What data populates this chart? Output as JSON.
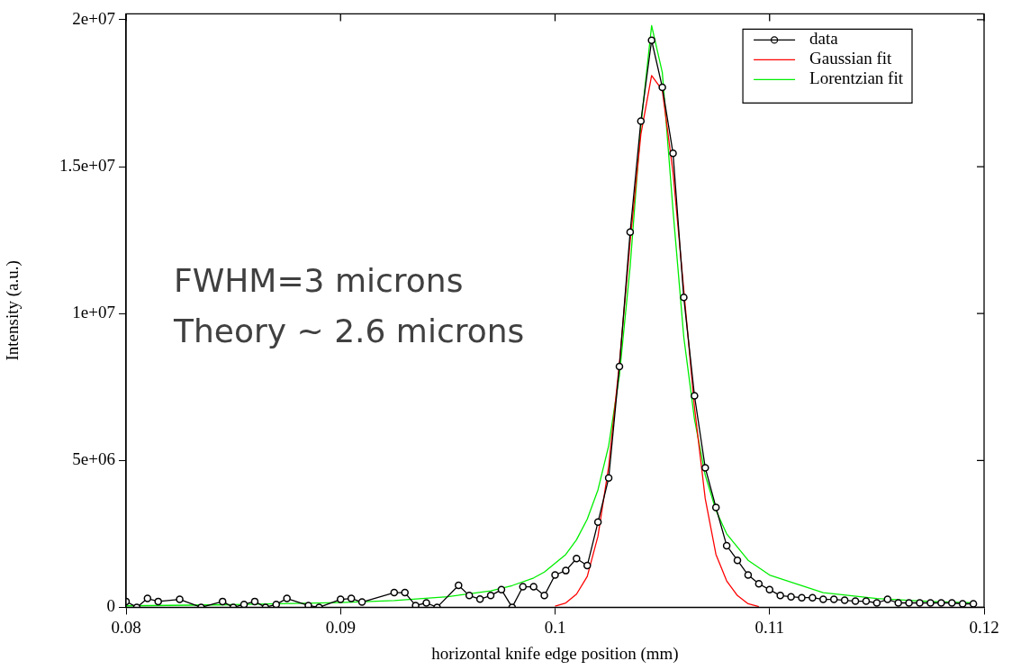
{
  "chart_data": {
    "type": "line",
    "xlabel": "horizontal knife edge position (mm)",
    "ylabel": "Intensity (a.u.)",
    "xlim": [
      0.08,
      0.12
    ],
    "xticks": [
      0.08,
      0.09,
      0.1,
      0.11,
      0.12
    ],
    "ylim": [
      0,
      20200000
    ],
    "yticks": [
      0,
      {
        "value": 5000000,
        "label": "5e+06"
      },
      {
        "value": 10000000,
        "label": "1e+07"
      },
      {
        "value": 15000000,
        "label": "1.5e+07"
      },
      {
        "value": 20000000,
        "label": "2e+07"
      }
    ],
    "grid": false,
    "legend": "top right",
    "annotations": [
      "FWHM=3 microns",
      "Theory ~ 2.6 microns"
    ],
    "series": [
      {
        "name": "data",
        "color": "#000000",
        "marker": "circle",
        "x": [
          0.08,
          0.0805,
          0.081,
          0.0815,
          0.0825,
          0.0835,
          0.0845,
          0.085,
          0.0855,
          0.086,
          0.0865,
          0.087,
          0.0875,
          0.0885,
          0.089,
          0.09,
          0.0905,
          0.091,
          0.0925,
          0.093,
          0.0935,
          0.094,
          0.0945,
          0.0955,
          0.096,
          0.0965,
          0.097,
          0.0975,
          0.098,
          0.0985,
          0.099,
          0.0995,
          0.1,
          0.1005,
          0.101,
          0.1015,
          0.102,
          0.1025,
          0.103,
          0.1035,
          0.104,
          0.1045,
          0.105,
          0.1055,
          0.106,
          0.1065,
          0.107,
          0.1075,
          0.108,
          0.1085,
          0.109,
          0.1095,
          0.11,
          0.1105,
          0.111,
          0.1115,
          0.112,
          0.1125,
          0.113,
          0.1135,
          0.114,
          0.1145,
          0.115,
          0.1155,
          0.116,
          0.1165,
          0.117,
          0.1175,
          0.118,
          0.1185,
          0.119,
          0.1195
        ],
        "values": [
          200000,
          0,
          300000,
          200000,
          270000,
          0,
          200000,
          0,
          100000,
          200000,
          0,
          100000,
          300000,
          60000,
          0,
          270000,
          300000,
          180000,
          500000,
          500000,
          60000,
          150000,
          0,
          750000,
          400000,
          280000,
          400000,
          600000,
          0,
          700000,
          700000,
          400000,
          1100000,
          1250000,
          1660000,
          1420000,
          2900000,
          4400000,
          8200000,
          12770000,
          16550000,
          19300000,
          17700000,
          15450000,
          10550000,
          7200000,
          4750000,
          3400000,
          2100000,
          1600000,
          1100000,
          800000,
          600000,
          400000,
          360000,
          330000,
          330000,
          270000,
          270000,
          240000,
          210000,
          210000,
          150000,
          270000,
          150000,
          150000,
          150000,
          150000,
          150000,
          150000,
          120000,
          120000
        ]
      },
      {
        "name": "Gaussian fit",
        "color": "#ff0000",
        "marker": "none",
        "x": [
          0.1,
          0.1005,
          0.101,
          0.1015,
          0.102,
          0.1025,
          0.103,
          0.1035,
          0.104,
          0.1045,
          0.105,
          0.1055,
          0.106,
          0.1065,
          0.107,
          0.1075,
          0.108,
          0.1085,
          0.109,
          0.1095
        ],
        "values": [
          40000,
          150000,
          450000,
          1050000,
          2420000,
          4800000,
          8300000,
          12450000,
          16100000,
          18100000,
          17600000,
          14800000,
          10800000,
          6800000,
          3700000,
          1800000,
          900000,
          400000,
          120000,
          20000
        ]
      },
      {
        "name": "Lorentzian fit",
        "color": "#00ee00",
        "marker": "none",
        "x": [
          0.08,
          0.085,
          0.09,
          0.0925,
          0.095,
          0.097,
          0.098,
          0.099,
          0.0995,
          0.1,
          0.1005,
          0.101,
          0.1015,
          0.102,
          0.1025,
          0.103,
          0.1035,
          0.104,
          0.1045,
          0.105,
          0.1055,
          0.106,
          0.1065,
          0.107,
          0.1075,
          0.108,
          0.109,
          0.11,
          0.1125,
          0.115,
          0.1175,
          0.1195
        ],
        "values": [
          50000,
          90000,
          160000,
          230000,
          360000,
          560000,
          740000,
          1000000,
          1200000,
          1500000,
          1800000,
          2300000,
          3000000,
          4000000,
          5500000,
          7900000,
          11600000,
          16400000,
          19800000,
          18200000,
          13500000,
          9200000,
          6400000,
          4500000,
          3300000,
          2500000,
          1600000,
          1100000,
          500000,
          300000,
          200000,
          150000
        ]
      }
    ]
  }
}
